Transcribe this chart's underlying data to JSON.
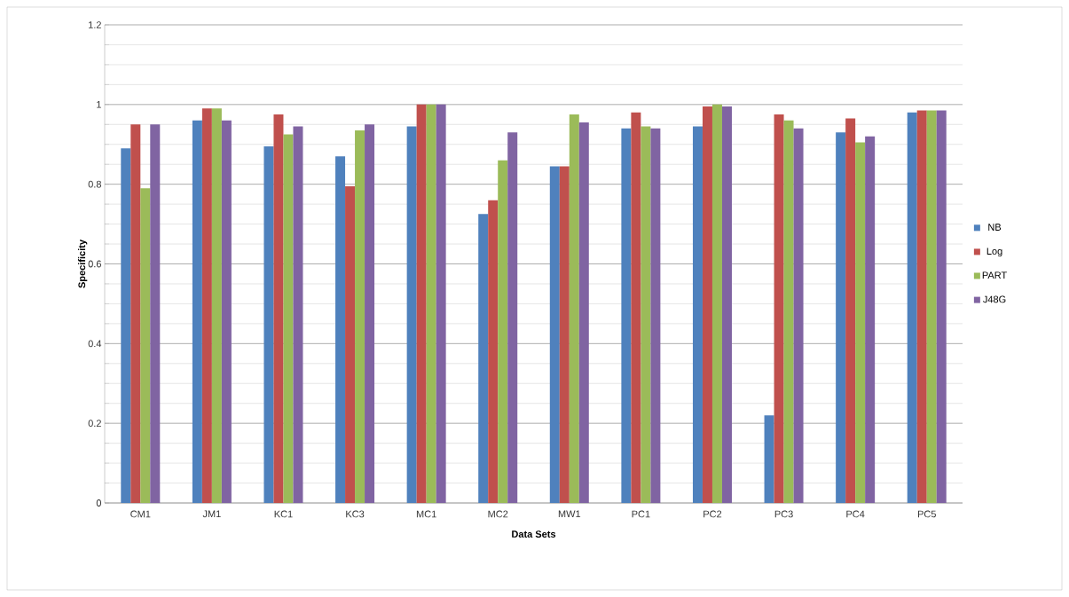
{
  "chart_data": {
    "type": "bar",
    "xlabel": "Data Sets",
    "ylabel": "Specificity",
    "categories": [
      "CM1",
      "JM1",
      "KC1",
      "KC3",
      "MC1",
      "MC2",
      "MW1",
      "PC1",
      "PC2",
      "PC3",
      "PC4",
      "PC5"
    ],
    "series": [
      {
        "name": "NB",
        "color": "#4f81bd",
        "values": [
          0.89,
          0.96,
          0.895,
          0.87,
          0.945,
          0.725,
          0.845,
          0.94,
          0.945,
          0.22,
          0.93,
          0.98
        ]
      },
      {
        "name": "Log",
        "color": "#c0504d",
        "values": [
          0.95,
          0.99,
          0.975,
          0.795,
          1.0,
          0.76,
          0.845,
          0.98,
          0.995,
          0.975,
          0.965,
          0.985
        ]
      },
      {
        "name": "PART",
        "color": "#9bbb59",
        "values": [
          0.79,
          0.99,
          0.925,
          0.935,
          1.0,
          0.86,
          0.975,
          0.945,
          1.0,
          0.96,
          0.905,
          0.985
        ]
      },
      {
        "name": "J48G",
        "color": "#8064a2",
        "values": [
          0.95,
          0.96,
          0.945,
          0.95,
          1.0,
          0.93,
          0.955,
          0.94,
          0.995,
          0.94,
          0.92,
          0.985
        ]
      }
    ],
    "ylim": [
      0,
      1.2
    ],
    "yticks": [
      0,
      0.2,
      0.4,
      0.6,
      0.8,
      1,
      1.2
    ],
    "grid": "y",
    "legend": "right"
  }
}
